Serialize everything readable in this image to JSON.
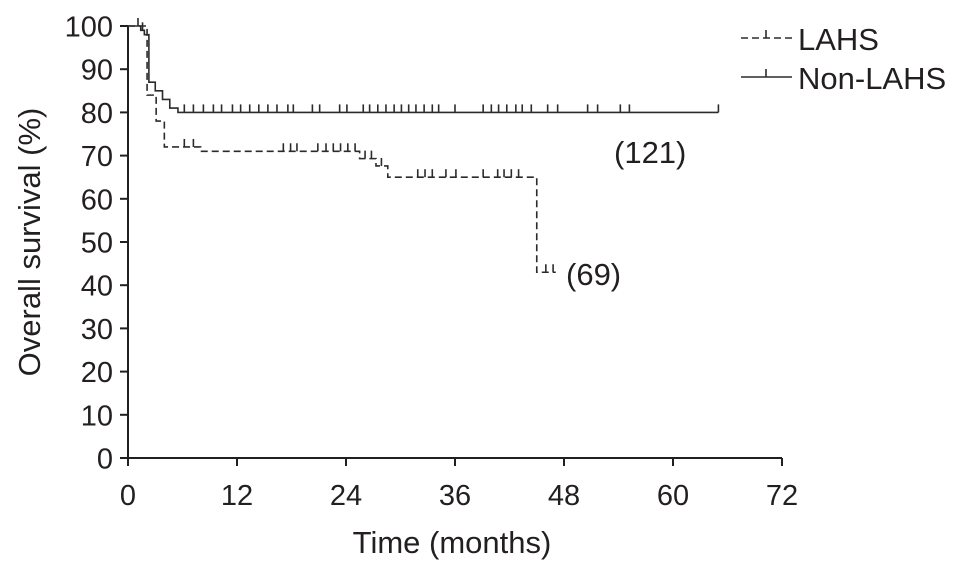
{
  "chart_data": {
    "type": "line",
    "step": true,
    "title": "",
    "xlabel": "Time (months)",
    "ylabel": "Overall survival (%)",
    "xlim": [
      0,
      72
    ],
    "ylim": [
      0,
      100
    ],
    "xticks": [
      0,
      12,
      24,
      36,
      48,
      60,
      72
    ],
    "yticks": [
      0,
      10,
      20,
      30,
      40,
      50,
      60,
      70,
      80,
      90,
      100
    ],
    "grid": false,
    "legend_position": "top-right",
    "series": [
      {
        "name": "LAHS",
        "line_style": "dashed",
        "color": "#2b2b2b",
        "steps": [
          [
            0,
            100
          ],
          [
            2.1,
            84
          ],
          [
            3.1,
            78
          ],
          [
            4.0,
            72
          ],
          [
            8.0,
            71
          ],
          [
            25.5,
            69.3
          ],
          [
            27.3,
            67.6
          ],
          [
            28.6,
            65
          ],
          [
            45.0,
            43
          ]
        ],
        "end": 47.1,
        "censored": [
          6.2,
          7.2,
          17.1,
          17.9,
          18.6,
          20.9,
          21.8,
          22.6,
          23.4,
          24.2,
          25.0,
          26.1,
          26.8,
          27.9,
          31.9,
          32.7,
          33.5,
          35.0,
          36.1,
          39.1,
          40.7,
          41.4,
          42.2,
          43.0,
          46.0,
          46.8
        ],
        "n_label": "(69)"
      },
      {
        "name": "Non-LAHS",
        "line_style": "solid",
        "color": "#2b2b2b",
        "steps": [
          [
            0,
            100
          ],
          [
            1.4,
            99
          ],
          [
            1.8,
            98
          ],
          [
            2.3,
            87
          ],
          [
            3.0,
            85
          ],
          [
            3.8,
            83
          ],
          [
            4.6,
            81
          ],
          [
            5.5,
            80
          ]
        ],
        "end": 65.0,
        "censored": [
          1.1,
          1.6,
          6.2,
          7.2,
          8.3,
          9.4,
          10.3,
          11.5,
          12.4,
          13.4,
          14.4,
          15.4,
          16.4,
          17.6,
          18.2,
          20.3,
          21.1,
          23.3,
          24.1,
          25.9,
          26.6,
          27.5,
          28.4,
          29.3,
          30.1,
          30.9,
          31.7,
          32.6,
          33.5,
          34.2,
          36.0,
          39.1,
          40.0,
          40.8,
          41.7,
          42.7,
          43.4,
          44.4,
          46.2,
          47.3,
          50.6,
          51.7,
          54.2,
          55.2,
          65.0
        ],
        "n_label": "(121)"
      }
    ]
  }
}
